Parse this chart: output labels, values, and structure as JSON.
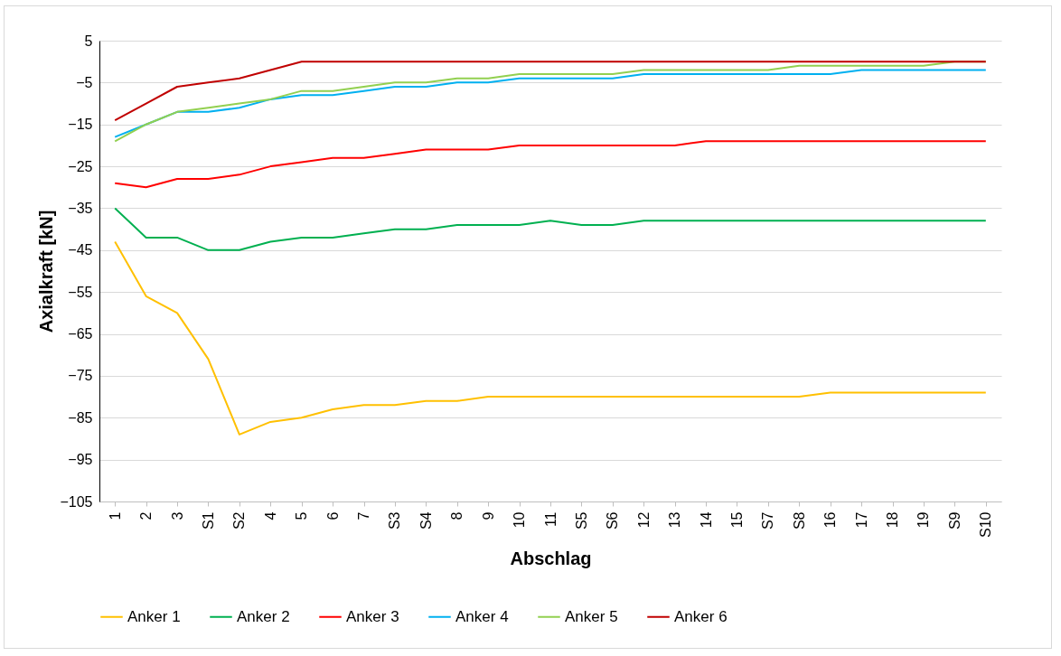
{
  "chart_data": {
    "type": "line",
    "xlabel": "Abschlag",
    "ylabel": "Axialkraft  [kN]",
    "categories": [
      "1",
      "2",
      "3",
      "S1",
      "S2",
      "4",
      "5",
      "6",
      "7",
      "S3",
      "S4",
      "8",
      "9",
      "10",
      "11",
      "S5",
      "S6",
      "12",
      "13",
      "14",
      "15",
      "S7",
      "S8",
      "16",
      "17",
      "18",
      "19",
      "S9",
      "S10"
    ],
    "series": [
      {
        "name": "Anker 1",
        "color": "#ffc000",
        "values": [
          -43,
          -56,
          -60,
          -71,
          -89,
          -86,
          -85,
          -83,
          -82,
          -82,
          -81,
          -81,
          -80,
          -80,
          -80,
          -80,
          -80,
          -80,
          -80,
          -80,
          -80,
          -80,
          -80,
          -79,
          -79,
          -79,
          -79,
          -79,
          -79
        ]
      },
      {
        "name": "Anker 2",
        "color": "#00b050",
        "values": [
          -35,
          -42,
          -42,
          -45,
          -45,
          -43,
          -42,
          -42,
          -41,
          -40,
          -40,
          -39,
          -39,
          -39,
          -38,
          -39,
          -39,
          -38,
          -38,
          -38,
          -38,
          -38,
          -38,
          -38,
          -38,
          -38,
          -38,
          -38,
          -38
        ]
      },
      {
        "name": "Anker 3",
        "color": "#ff0000",
        "values": [
          -29,
          -30,
          -28,
          -28,
          -27,
          -25,
          -24,
          -23,
          -23,
          -22,
          -21,
          -21,
          -21,
          -20,
          -20,
          -20,
          -20,
          -20,
          -20,
          -19,
          -19,
          -19,
          -19,
          -19,
          -19,
          -19,
          -19,
          -19,
          -19
        ]
      },
      {
        "name": "Anker 4",
        "color": "#00b0f0",
        "values": [
          -18,
          -15,
          -12,
          -12,
          -11,
          -9,
          -8,
          -8,
          -7,
          -6,
          -6,
          -5,
          -5,
          -4,
          -4,
          -4,
          -4,
          -3,
          -3,
          -3,
          -3,
          -3,
          -3,
          -3,
          -2,
          -2,
          -2,
          -2,
          -2
        ]
      },
      {
        "name": "Anker 5",
        "color": "#92d050",
        "values": [
          -19,
          -15,
          -12,
          -11,
          -10,
          -9,
          -7,
          -7,
          -6,
          -5,
          -5,
          -4,
          -4,
          -3,
          -3,
          -3,
          -3,
          -2,
          -2,
          -2,
          -2,
          -2,
          -1,
          -1,
          -1,
          -1,
          -1,
          0,
          0
        ]
      },
      {
        "name": "Anker 6",
        "color": "#c00000",
        "values": [
          -14,
          -10,
          -6,
          -5,
          -4,
          -2,
          0,
          0,
          0,
          0,
          0,
          0,
          0,
          0,
          0,
          0,
          0,
          0,
          0,
          0,
          0,
          0,
          0,
          0,
          0,
          0,
          0,
          0,
          0
        ]
      }
    ],
    "ylim": [
      -105,
      5
    ],
    "yticks": [
      5,
      -5,
      -15,
      -25,
      -35,
      -45,
      -55,
      -65,
      -75,
      -85,
      -95,
      -105
    ],
    "grid": "y",
    "legend": "bottom",
    "marker": "none",
    "line_style": "solid"
  }
}
